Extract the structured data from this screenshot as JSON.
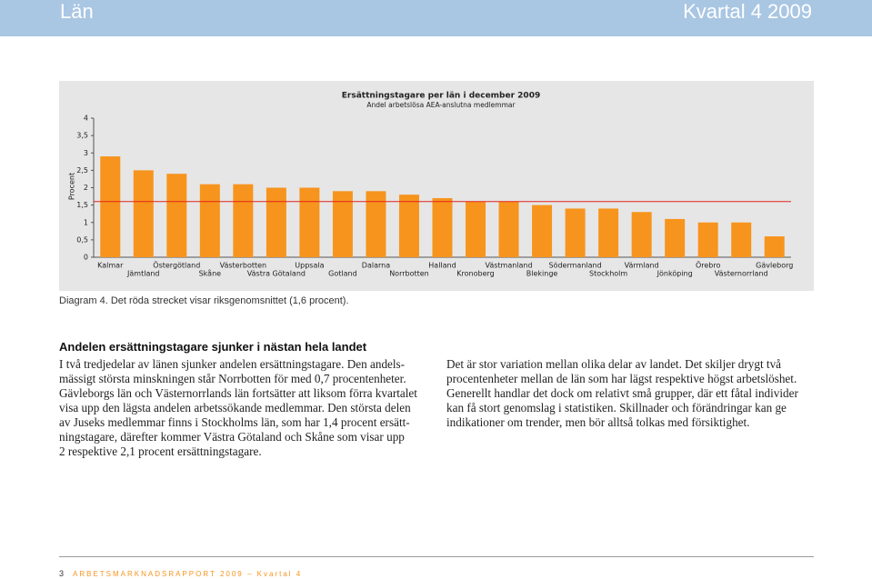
{
  "header": {
    "left": "Län",
    "right": "Kvartal 4 2009"
  },
  "chart_data": {
    "type": "bar",
    "title": "Ersättningstagare per län i december 2009",
    "subtitle": "Andel arbetslösa AEA-anslutna medlemmar",
    "y_label": "Procent",
    "categories": [
      "Kalmar",
      "Jämtland",
      "Östergötland",
      "Skåne",
      "Västerbotten",
      "Västra Götaland",
      "Uppsala",
      "Gotland",
      "Dalarna",
      "Norrbotten",
      "Halland",
      "Kronoberg",
      "Västmanland",
      "Blekinge",
      "Södermanland",
      "Stockholm",
      "Värmland",
      "Jönköping",
      "Örebro",
      "Västernorrland",
      "Gävleborg"
    ],
    "values": [
      2.9,
      2.5,
      2.4,
      2.1,
      2.1,
      2.0,
      2.0,
      1.9,
      1.9,
      1.8,
      1.7,
      1.6,
      1.6,
      1.5,
      1.4,
      1.4,
      1.3,
      1.1,
      1.0,
      1.0,
      0.6
    ],
    "color": "#f7941d",
    "reference_line": 1.6,
    "reference_color": "#e2231a",
    "ylim": [
      0,
      4
    ],
    "yticks": [
      0,
      {
        "value": 0.5,
        "label": "0,5"
      },
      1,
      {
        "value": 1.5,
        "label": "1,5"
      },
      2,
      {
        "value": 2.5,
        "label": "2,5"
      },
      3,
      {
        "value": 3.5,
        "label": "3,5"
      },
      4
    ]
  },
  "caption": "Diagram 4.  Det röda strecket visar riksgenomsnittet (1,6 procent).",
  "article": {
    "heading": "Andelen ersättningstagare sjunker i nästan hela landet",
    "left_lines": [
      "I två tredjedelar av länen sjunker andelen ersättningstagare. Den andels-",
      "mässigt största minskningen står Norrbotten för med 0,7 procentenheter.",
      "Gävleborgs län och Västernorrlands län fortsätter att liksom förra kvartalet",
      "visa upp den lägsta andelen arbetssökande medlemmar. Den största delen",
      "av Juseks medlemmar finns i Stockholms län, som har 1,4 procent ersätt-",
      "ningstagare, därefter kommer Västra Götaland och Skåne som visar upp",
      "2 respektive 2,1 procent ersättningstagare."
    ],
    "right_lines": [
      "Det är stor variation mellan olika delar av landet. Det skiljer drygt två",
      "procentenheter mellan de län som har lägst respektive högst arbetslöshet.",
      "Generellt handlar det dock om relativt små grupper, där ett fåtal individer",
      "kan få stort genomslag i statistiken. Skillnader och förändringar kan ge",
      "indikationer om trender, men bör alltså tolkas med försiktighet."
    ]
  },
  "footer": {
    "page": "3",
    "text": "ARBETSMARKNADSRAPPORT 2009 – Kvartal 4"
  }
}
